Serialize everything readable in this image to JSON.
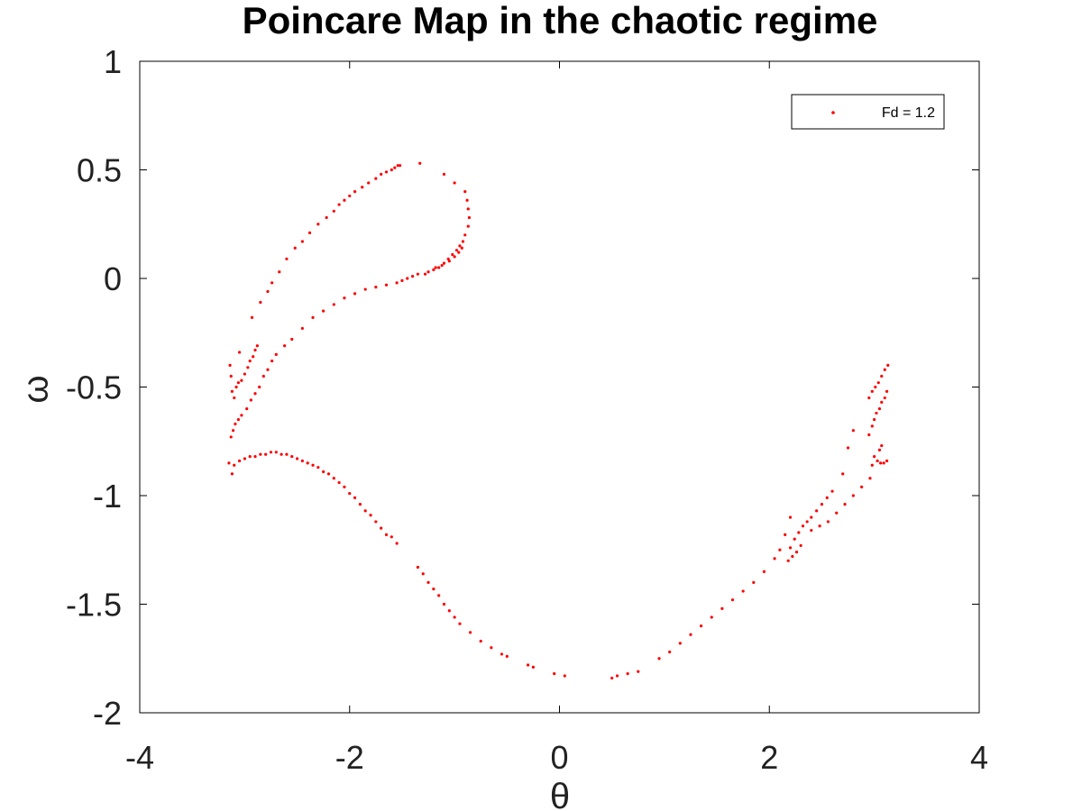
{
  "chart_data": {
    "type": "scatter",
    "title": "Poincare Map in the chaotic regime",
    "xlabel": "θ",
    "ylabel": "ω",
    "xlim": [
      -4,
      4
    ],
    "ylim": [
      -2,
      1
    ],
    "xticks": [
      -4,
      -2,
      0,
      2,
      4
    ],
    "yticks": [
      -2,
      -1.5,
      -1,
      -0.5,
      0,
      0.5,
      1
    ],
    "xtick_labels": [
      "-4",
      "-2",
      "0",
      "2",
      "4"
    ],
    "ytick_labels": [
      "-2",
      "-1.5",
      "-1",
      "-0.5",
      "0",
      "0.5",
      "1"
    ],
    "grid": false,
    "legend_position": "top-right",
    "colors": {
      "series": "#ff0000"
    },
    "series": [
      {
        "name": "Fd = 1.2",
        "points": [
          [
            -3.14,
            -0.4
          ],
          [
            -3.13,
            -0.45
          ],
          [
            -3.12,
            -0.52
          ],
          [
            -3.1,
            -0.55
          ],
          [
            -3.08,
            -0.5
          ],
          [
            -3.06,
            -0.48
          ],
          [
            -3.03,
            -0.47
          ],
          [
            -3.0,
            -0.44
          ],
          [
            -2.97,
            -0.41
          ],
          [
            -2.95,
            -0.38
          ],
          [
            -2.92,
            -0.36
          ],
          [
            -2.9,
            -0.33
          ],
          [
            -2.88,
            -0.31
          ],
          [
            -3.05,
            -0.34
          ],
          [
            -3.13,
            -0.73
          ],
          [
            -3.11,
            -0.7
          ],
          [
            -3.09,
            -0.67
          ],
          [
            -3.06,
            -0.65
          ],
          [
            -3.03,
            -0.63
          ],
          [
            -2.98,
            -0.6
          ],
          [
            -2.94,
            -0.56
          ],
          [
            -2.9,
            -0.53
          ],
          [
            -2.86,
            -0.5
          ],
          [
            -2.82,
            -0.45
          ],
          [
            -2.78,
            -0.42
          ],
          [
            -2.74,
            -0.38
          ],
          [
            -2.7,
            -0.35
          ],
          [
            -2.62,
            -0.31
          ],
          [
            -2.55,
            -0.28
          ],
          [
            -2.45,
            -0.23
          ],
          [
            -2.35,
            -0.18
          ],
          [
            -2.25,
            -0.15
          ],
          [
            -2.15,
            -0.12
          ],
          [
            -2.05,
            -0.09
          ],
          [
            -1.95,
            -0.07
          ],
          [
            -1.85,
            -0.05
          ],
          [
            -1.75,
            -0.04
          ],
          [
            -1.65,
            -0.03
          ],
          [
            -1.55,
            -0.02
          ],
          [
            -1.5,
            -0.01
          ],
          [
            -1.45,
            0.0
          ],
          [
            -1.4,
            0.01
          ],
          [
            -1.35,
            0.02
          ],
          [
            -2.93,
            -0.18
          ],
          [
            -2.85,
            -0.11
          ],
          [
            -2.78,
            -0.06
          ],
          [
            -2.74,
            -0.02
          ],
          [
            -2.67,
            0.03
          ],
          [
            -2.6,
            0.09
          ],
          [
            -2.52,
            0.14
          ],
          [
            -2.45,
            0.17
          ],
          [
            -2.38,
            0.21
          ],
          [
            -2.3,
            0.25
          ],
          [
            -2.22,
            0.28
          ],
          [
            -2.15,
            0.31
          ],
          [
            -2.1,
            0.34
          ],
          [
            -2.05,
            0.36
          ],
          [
            -2.0,
            0.38
          ],
          [
            -1.95,
            0.4
          ],
          [
            -1.88,
            0.42
          ],
          [
            -1.82,
            0.44
          ],
          [
            -1.75,
            0.46
          ],
          [
            -1.7,
            0.48
          ],
          [
            -1.65,
            0.49
          ],
          [
            -1.6,
            0.5
          ],
          [
            -1.57,
            0.51
          ],
          [
            -1.54,
            0.52
          ],
          [
            -1.52,
            0.52
          ],
          [
            -1.33,
            0.53
          ],
          [
            -1.1,
            0.48
          ],
          [
            -1.0,
            0.44
          ],
          [
            -0.9,
            0.4
          ],
          [
            -0.88,
            0.36
          ],
          [
            -0.87,
            0.32
          ],
          [
            -0.86,
            0.28
          ],
          [
            -0.87,
            0.24
          ],
          [
            -0.9,
            0.2
          ],
          [
            -0.92,
            0.17
          ],
          [
            -0.95,
            0.15
          ],
          [
            -0.98,
            0.13
          ],
          [
            -1.02,
            0.11
          ],
          [
            -1.06,
            0.09
          ],
          [
            -1.1,
            0.07
          ],
          [
            -1.15,
            0.05
          ],
          [
            -1.2,
            0.04
          ],
          [
            -1.25,
            0.03
          ],
          [
            -1.28,
            0.02
          ],
          [
            -0.93,
            0.14
          ],
          [
            -0.96,
            0.12
          ],
          [
            -1.0,
            0.1
          ],
          [
            -1.05,
            0.08
          ],
          [
            -1.12,
            0.06
          ],
          [
            -1.18,
            0.05
          ],
          [
            -3.15,
            -0.85
          ],
          [
            -3.1,
            -0.86
          ],
          [
            -3.05,
            -0.84
          ],
          [
            -3.0,
            -0.83
          ],
          [
            -2.95,
            -0.82
          ],
          [
            -2.9,
            -0.82
          ],
          [
            -2.85,
            -0.81
          ],
          [
            -2.8,
            -0.81
          ],
          [
            -2.75,
            -0.8
          ],
          [
            -2.7,
            -0.8
          ],
          [
            -2.65,
            -0.81
          ],
          [
            -2.6,
            -0.81
          ],
          [
            -2.55,
            -0.82
          ],
          [
            -2.5,
            -0.83
          ],
          [
            -2.45,
            -0.84
          ],
          [
            -2.4,
            -0.85
          ],
          [
            -2.35,
            -0.86
          ],
          [
            -2.3,
            -0.87
          ],
          [
            -2.25,
            -0.89
          ],
          [
            -2.2,
            -0.9
          ],
          [
            -2.15,
            -0.92
          ],
          [
            -2.1,
            -0.94
          ],
          [
            -2.05,
            -0.96
          ],
          [
            -2.0,
            -0.99
          ],
          [
            -1.95,
            -1.01
          ],
          [
            -1.9,
            -1.04
          ],
          [
            -1.85,
            -1.07
          ],
          [
            -1.8,
            -1.09
          ],
          [
            -1.75,
            -1.12
          ],
          [
            -1.7,
            -1.15
          ],
          [
            -1.65,
            -1.18
          ],
          [
            -1.6,
            -1.19
          ],
          [
            -1.55,
            -1.22
          ],
          [
            -3.12,
            -0.9
          ],
          [
            -1.35,
            -1.33
          ],
          [
            -1.3,
            -1.36
          ],
          [
            -1.25,
            -1.4
          ],
          [
            -1.2,
            -1.43
          ],
          [
            -1.15,
            -1.46
          ],
          [
            -1.1,
            -1.5
          ],
          [
            -1.05,
            -1.53
          ],
          [
            -1.0,
            -1.56
          ],
          [
            -0.95,
            -1.59
          ],
          [
            -0.85,
            -1.63
          ],
          [
            -0.75,
            -1.67
          ],
          [
            -0.65,
            -1.7
          ],
          [
            -0.55,
            -1.73
          ],
          [
            -0.5,
            -1.74
          ],
          [
            -0.3,
            -1.78
          ],
          [
            -0.25,
            -1.79
          ],
          [
            -0.05,
            -1.82
          ],
          [
            0.05,
            -1.83
          ],
          [
            0.5,
            -1.84
          ],
          [
            0.55,
            -1.83
          ],
          [
            0.65,
            -1.82
          ],
          [
            0.75,
            -1.81
          ],
          [
            0.95,
            -1.75
          ],
          [
            1.05,
            -1.72
          ],
          [
            1.15,
            -1.68
          ],
          [
            1.25,
            -1.64
          ],
          [
            1.35,
            -1.6
          ],
          [
            1.45,
            -1.56
          ],
          [
            1.55,
            -1.52
          ],
          [
            1.65,
            -1.48
          ],
          [
            1.75,
            -1.44
          ],
          [
            1.85,
            -1.4
          ],
          [
            1.95,
            -1.35
          ],
          [
            2.05,
            -1.29
          ],
          [
            2.1,
            -1.25
          ],
          [
            2.18,
            -1.3
          ],
          [
            2.22,
            -1.28
          ],
          [
            2.26,
            -1.26
          ],
          [
            2.3,
            -1.23
          ],
          [
            2.2,
            -1.24
          ],
          [
            2.24,
            -1.2
          ],
          [
            2.28,
            -1.17
          ],
          [
            2.32,
            -1.14
          ],
          [
            2.36,
            -1.12
          ],
          [
            2.4,
            -1.1
          ],
          [
            2.45,
            -1.07
          ],
          [
            2.5,
            -1.04
          ],
          [
            2.55,
            -1.01
          ],
          [
            2.6,
            -0.98
          ],
          [
            2.4,
            -1.16
          ],
          [
            2.48,
            -1.14
          ],
          [
            2.56,
            -1.12
          ],
          [
            2.64,
            -1.08
          ],
          [
            2.72,
            -1.04
          ],
          [
            2.8,
            -1.0
          ],
          [
            2.88,
            -0.96
          ],
          [
            2.96,
            -0.92
          ],
          [
            2.2,
            -1.1
          ],
          [
            2.15,
            -1.18
          ],
          [
            2.95,
            -0.72
          ],
          [
            2.98,
            -0.68
          ],
          [
            3.0,
            -0.65
          ],
          [
            3.02,
            -0.62
          ],
          [
            3.05,
            -0.6
          ],
          [
            3.07,
            -0.57
          ],
          [
            3.1,
            -0.55
          ],
          [
            3.12,
            -0.52
          ],
          [
            2.95,
            -0.55
          ],
          [
            2.98,
            -0.52
          ],
          [
            3.01,
            -0.5
          ],
          [
            3.04,
            -0.48
          ],
          [
            3.07,
            -0.45
          ],
          [
            3.1,
            -0.42
          ],
          [
            3.13,
            -0.4
          ],
          [
            3.0,
            -0.82
          ],
          [
            3.03,
            -0.84
          ],
          [
            3.06,
            -0.85
          ],
          [
            3.09,
            -0.85
          ],
          [
            3.12,
            -0.84
          ],
          [
            3.05,
            -0.79
          ],
          [
            3.07,
            -0.77
          ],
          [
            2.98,
            -0.86
          ],
          [
            2.8,
            -0.7
          ],
          [
            2.75,
            -0.78
          ],
          [
            2.7,
            -0.9
          ]
        ]
      }
    ]
  }
}
